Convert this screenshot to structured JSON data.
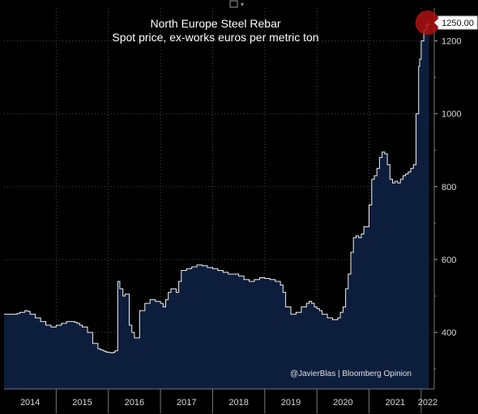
{
  "toolbar": {
    "icon": "image-icon",
    "menu_glyph": "▾"
  },
  "colors": {
    "background": "#000000",
    "fill": "#0c1e3c",
    "line": "#f2f2f2",
    "grid": "#4a4a4a",
    "marker": "#b01010"
  },
  "chart_data": {
    "type": "area",
    "title": "North Europe Steel Rebar",
    "subtitle": "Spot price, ex-works euros per metric ton",
    "xlabel": "",
    "ylabel": "",
    "x_ticks": [
      "2014",
      "2015",
      "2016",
      "2017",
      "2018",
      "2019",
      "2020",
      "2021",
      "2022"
    ],
    "y_ticks": [
      400,
      600,
      800,
      1000,
      1200
    ],
    "y_tick_labels": [
      "400",
      "600",
      "800",
      "1000",
      "1200"
    ],
    "xlim": [
      2014.0,
      2022.25
    ],
    "ylim": [
      245,
      1290
    ],
    "grid": true,
    "last_value_label": "1250.00",
    "last_value": 1250,
    "credit": "@JavierBlas | Bloomberg Opinion",
    "series": [
      {
        "x": [
          2014.0,
          2014.25,
          2014.3,
          2014.4,
          2014.45,
          2014.5,
          2014.6,
          2014.7,
          2014.8,
          2014.9,
          2015.0,
          2015.1,
          2015.2,
          2015.3,
          2015.35,
          2015.4,
          2015.45,
          2015.5,
          2015.6,
          2015.7,
          2015.8,
          2015.85,
          2015.9,
          2015.93,
          2015.96,
          2016.0,
          2016.05,
          2016.1,
          2016.13,
          2016.18,
          2016.22,
          2016.28,
          2016.32,
          2016.4,
          2016.45,
          2016.5,
          2016.6,
          2016.7,
          2016.8,
          2016.9,
          2017.0,
          2017.05,
          2017.1,
          2017.15,
          2017.2,
          2017.3,
          2017.35,
          2017.4,
          2017.5,
          2017.6,
          2017.7,
          2017.8,
          2017.9,
          2018.0,
          2018.1,
          2018.2,
          2018.3,
          2018.4,
          2018.5,
          2018.6,
          2018.7,
          2018.8,
          2018.9,
          2019.0,
          2019.1,
          2019.2,
          2019.3,
          2019.35,
          2019.4,
          2019.5,
          2019.6,
          2019.7,
          2019.8,
          2019.85,
          2019.9,
          2019.95,
          2020.0,
          2020.05,
          2020.1,
          2020.2,
          2020.3,
          2020.4,
          2020.45,
          2020.5,
          2020.55,
          2020.6,
          2020.65,
          2020.7,
          2020.75,
          2020.8,
          2020.85,
          2020.9,
          2021.0,
          2021.05,
          2021.1,
          2021.15,
          2021.2,
          2021.25,
          2021.3,
          2021.35,
          2021.4,
          2021.45,
          2021.5,
          2021.55,
          2021.6,
          2021.65,
          2021.7,
          2021.75,
          2021.8,
          2021.85,
          2021.9,
          2021.95,
          2021.97,
          2022.0,
          2022.05,
          2022.1,
          2022.15
        ],
        "y": [
          450,
          452,
          455,
          460,
          458,
          450,
          440,
          430,
          420,
          415,
          420,
          425,
          430,
          430,
          428,
          425,
          420,
          415,
          400,
          370,
          355,
          352,
          350,
          348,
          346,
          345,
          344,
          346,
          350,
          540,
          520,
          500,
          505,
          420,
          400,
          385,
          460,
          480,
          490,
          485,
          480,
          470,
          490,
          510,
          520,
          510,
          540,
          570,
          575,
          580,
          585,
          583,
          578,
          575,
          570,
          565,
          560,
          560,
          555,
          545,
          540,
          545,
          550,
          548,
          545,
          540,
          530,
          510,
          470,
          450,
          455,
          470,
          480,
          485,
          480,
          470,
          465,
          460,
          450,
          440,
          435,
          440,
          455,
          470,
          520,
          560,
          620,
          660,
          665,
          660,
          670,
          690,
          750,
          820,
          830,
          850,
          880,
          895,
          890,
          860,
          820,
          810,
          815,
          810,
          820,
          830,
          835,
          840,
          850,
          860,
          1000,
          1130,
          1150,
          1200,
          1230,
          1245,
          1250
        ]
      }
    ]
  }
}
